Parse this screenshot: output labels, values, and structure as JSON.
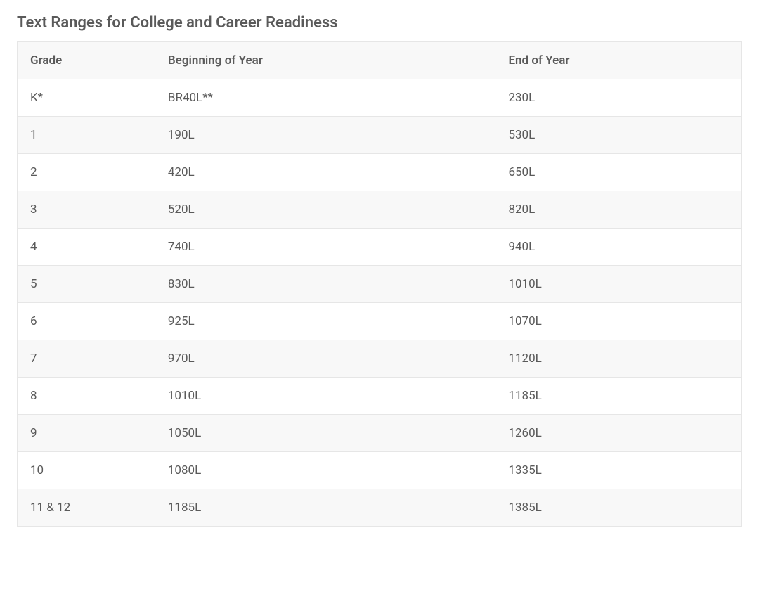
{
  "title": "Text Ranges for College and Career Readiness",
  "table": {
    "columns": [
      "Grade",
      "Beginning of Year",
      "End of Year"
    ],
    "column_widths_pct": [
      19,
      47,
      34
    ],
    "rows": [
      [
        "K*",
        "BR40L**",
        "230L"
      ],
      [
        "1",
        "190L",
        "530L"
      ],
      [
        "2",
        "420L",
        "650L"
      ],
      [
        "3",
        "520L",
        "820L"
      ],
      [
        "4",
        "740L",
        "940L"
      ],
      [
        "5",
        "830L",
        "1010L"
      ],
      [
        "6",
        "925L",
        "1070L"
      ],
      [
        "7",
        "970L",
        "1120L"
      ],
      [
        "8",
        "1010L",
        "1185L"
      ],
      [
        "9",
        "1050L",
        "1260L"
      ],
      [
        "10",
        "1080L",
        "1335L"
      ],
      [
        "11 & 12",
        "1185L",
        "1385L"
      ]
    ],
    "header_bg": "#f8f8f8",
    "row_alt_bg": "#f8f8f8",
    "row_bg": "#ffffff",
    "border_color": "#e6e6e6",
    "text_color": "#5a5a5a",
    "title_color": "#5a5a5a",
    "font_size_cell": 17,
    "font_size_title": 22,
    "title_font_weight": 600,
    "header_font_weight": 600
  }
}
